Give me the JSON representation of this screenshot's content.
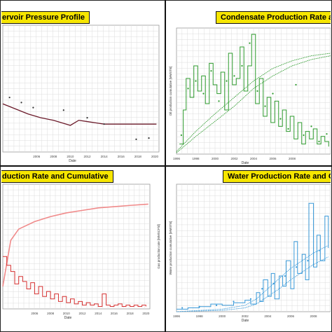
{
  "panels": {
    "p1": {
      "title": "ervoir Pressure Profile"
    },
    "p2": {
      "title": "Condensate Production Rate ar"
    },
    "p3": {
      "title": "duction Rate and Cumulative"
    },
    "p4": {
      "title": "Water Production Rate and C"
    }
  },
  "colors": {
    "pressure_line": "#6b1a2a",
    "condensate": "#2e9b2e",
    "gas": "#d63030",
    "water": "#3a9ad9",
    "title_bg": "#f7e600"
  },
  "chart_data": [
    {
      "type": "line",
      "title": "ervoir Pressure Profile",
      "xlabel": "Date",
      "ylabel": "",
      "x_ticks": [
        "2006",
        "2008",
        "2010",
        "2012",
        "2014",
        "2016",
        "2018",
        "2020"
      ],
      "xlim": [
        2002,
        2020.5
      ],
      "ylim": [
        0,
        100
      ],
      "grid": true,
      "series": [
        {
          "kind": "line",
          "x": [
            2002,
            2003.5,
            2005,
            2006.5,
            2008,
            2009,
            2010,
            2011,
            2012,
            2013,
            2014,
            2016,
            2018,
            2020.2
          ],
          "y": [
            38,
            34,
            30,
            27,
            25,
            23,
            21,
            25,
            24,
            23,
            22,
            22,
            22,
            22
          ]
        },
        {
          "kind": "points",
          "x": [
            2002.8,
            2004.2,
            2005.6,
            2009.2,
            2012,
            2014,
            2017.8,
            2019.3
          ],
          "y": [
            43,
            39,
            35,
            33,
            27,
            22,
            10,
            11
          ]
        }
      ]
    },
    {
      "type": "line",
      "title": "Condensate Production Rate ar",
      "xlabel": "Date",
      "ylabel": "Oil production cumulative [MMSTB]",
      "x_ticks": [
        "1996",
        "1998",
        "2000",
        "2002",
        "2004",
        "2006",
        "2008",
        "201"
      ],
      "xlim": [
        1996,
        2012
      ],
      "ylim": [
        0,
        100
      ],
      "grid": true,
      "series": [
        {
          "kind": "rate",
          "x": [
            1996.3,
            1996.7,
            1997.0,
            1997.4,
            1997.8,
            1998.2,
            1998.6,
            1999.0,
            1999.4,
            1999.8,
            2000.2,
            2000.6,
            2001.0,
            2001.4,
            2001.8,
            2002.2,
            2002.6,
            2003.0,
            2003.4,
            2003.8,
            2004.2,
            2004.6,
            2005.0,
            2005.4,
            2005.8,
            2006.2,
            2006.6,
            2007.0,
            2007.4,
            2007.8,
            2008.2,
            2008.6,
            2009.0,
            2009.4,
            2009.8,
            2010.2,
            2010.6,
            2011.0,
            2011.4,
            2011.8
          ],
          "y": [
            8,
            35,
            60,
            45,
            70,
            50,
            62,
            40,
            72,
            55,
            48,
            65,
            35,
            80,
            55,
            60,
            85,
            50,
            70,
            95,
            40,
            60,
            30,
            45,
            25,
            42,
            22,
            35,
            18,
            30,
            12,
            25,
            8,
            18,
            12,
            20,
            8,
            14,
            10,
            6
          ]
        },
        {
          "kind": "rate_points",
          "x": [
            1996.5,
            1997.2,
            1998.0,
            1998.8,
            1999.6,
            2000.4,
            2001.2,
            2002.0,
            2002.8,
            2003.6,
            2004.4,
            2005.2,
            2006.0,
            2006.8,
            2007.6,
            2008.4,
            2009.2,
            2010.0,
            2010.8,
            2011.6
          ],
          "y": [
            15,
            52,
            58,
            48,
            66,
            42,
            58,
            62,
            70,
            88,
            50,
            38,
            48,
            28,
            20,
            55,
            15,
            22,
            10,
            16
          ]
        },
        {
          "kind": "cumulative_upper",
          "x": [
            1996,
            1998,
            2000,
            2002,
            2004,
            2006,
            2008,
            2010,
            2012
          ],
          "y": [
            2,
            18,
            32,
            45,
            58,
            68,
            74,
            78,
            80
          ]
        },
        {
          "kind": "cumulative_lower",
          "x": [
            1996,
            1998,
            2000,
            2002,
            2004,
            2006,
            2008,
            2010,
            2012
          ],
          "y": [
            1,
            14,
            26,
            38,
            52,
            62,
            70,
            75,
            78
          ]
        }
      ]
    },
    {
      "type": "line",
      "title": "duction Rate and Cumulative",
      "xlabel": "Date",
      "ylabel": "Gas production rate [MMSCF/d]",
      "x_ticks": [
        "2006",
        "2008",
        "2010",
        "2012",
        "2014",
        "2016",
        "2018",
        "2020"
      ],
      "xlim": [
        2002,
        2020.5
      ],
      "ylim": [
        0,
        100
      ],
      "grid": true,
      "series": [
        {
          "kind": "cumulative",
          "x": [
            2002,
            2003,
            2004,
            2006,
            2008,
            2010,
            2012,
            2014,
            2016,
            2018,
            2020.3
          ],
          "y": [
            18,
            55,
            64,
            70,
            74,
            77,
            79,
            81,
            82,
            83,
            84
          ]
        },
        {
          "kind": "rate",
          "x": [
            2002.0,
            2002.5,
            2003.0,
            2003.5,
            2004.0,
            2004.5,
            2005.0,
            2005.5,
            2006.0,
            2006.5,
            2007.0,
            2007.5,
            2008.0,
            2008.5,
            2009.0,
            2009.5,
            2010.0,
            2010.5,
            2011.0,
            2011.5,
            2012.0,
            2012.5,
            2013.0,
            2013.5,
            2014.0,
            2014.5,
            2015.0,
            2015.5,
            2016.0,
            2016.5,
            2017.0,
            2017.5,
            2018.0,
            2018.5,
            2019.0,
            2019.5,
            2020.0
          ],
          "y": [
            42,
            35,
            30,
            20,
            26,
            22,
            16,
            21,
            12,
            18,
            10,
            14,
            8,
            12,
            6,
            10,
            5,
            8,
            4,
            6,
            3,
            5,
            3,
            4,
            2,
            12,
            3,
            2,
            3,
            4,
            2,
            3,
            2,
            3,
            2,
            3,
            2
          ]
        }
      ]
    },
    {
      "type": "line",
      "title": "Water Production Rate and C",
      "xlabel": "Date",
      "ylabel": "Water production cumulative [MMSTB]",
      "x_ticks": [
        "1996",
        "1998",
        "2000",
        "2002",
        "2004",
        "2006",
        "2008"
      ],
      "xlim": [
        1996,
        2009.5
      ],
      "ylim": [
        0,
        100
      ],
      "grid": true,
      "series": [
        {
          "kind": "rate",
          "x": [
            1996.0,
            1997.0,
            1998.0,
            1999.0,
            2000.0,
            2001.0,
            2002.0,
            2002.5,
            2003.0,
            2003.3,
            2003.6,
            2004.0,
            2004.3,
            2004.6,
            2005.0,
            2005.3,
            2005.6,
            2006.0,
            2006.3,
            2006.6,
            2007.0,
            2007.3,
            2007.6,
            2008.0,
            2008.3,
            2008.6,
            2009.0,
            2009.3
          ],
          "y": [
            2,
            3,
            4,
            6,
            5,
            7,
            9,
            6,
            15,
            8,
            25,
            12,
            30,
            10,
            28,
            20,
            40,
            18,
            55,
            30,
            45,
            25,
            85,
            35,
            60,
            40,
            75,
            50
          ]
        },
        {
          "kind": "rate_points",
          "x": [
            1996.5,
            1998,
            1999.5,
            2001,
            2002.5,
            2003.5,
            2004.5,
            2005.5,
            2006.5,
            2007.5,
            2008.5
          ],
          "y": [
            3,
            4,
            5,
            8,
            10,
            18,
            22,
            28,
            35,
            40,
            48
          ]
        },
        {
          "kind": "cumulative_upper",
          "x": [
            1996,
            2000,
            2002,
            2003,
            2004,
            2005,
            2006,
            2007,
            2008,
            2009.3
          ],
          "y": [
            0,
            2,
            5,
            10,
            18,
            26,
            34,
            40,
            46,
            52
          ]
        },
        {
          "kind": "cumulative_lower",
          "x": [
            1996,
            2000,
            2002,
            2003,
            2004,
            2005,
            2006,
            2007,
            2008,
            2009.3
          ],
          "y": [
            0,
            1,
            3,
            6,
            12,
            18,
            25,
            31,
            37,
            43
          ]
        }
      ]
    }
  ]
}
